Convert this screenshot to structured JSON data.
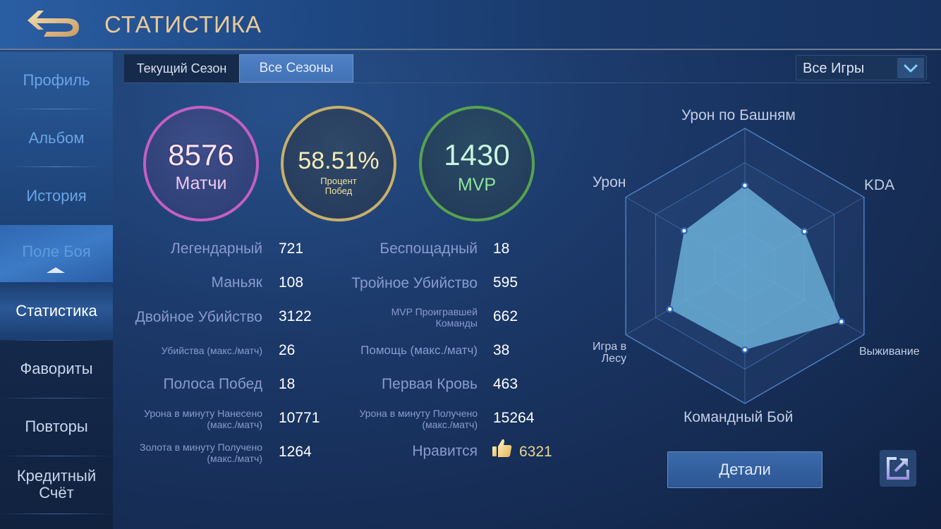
{
  "header": {
    "title": "СТАТИСТИКА",
    "back_icon": "back-arrow-icon"
  },
  "sidebar": {
    "items": [
      {
        "label": "Профиль",
        "state": "dim"
      },
      {
        "label": "Альбом",
        "state": "dim"
      },
      {
        "label": "История",
        "state": "dim"
      },
      {
        "label": "Поле Боя",
        "state": "parent-expanded"
      },
      {
        "label": "Статистика",
        "state": "active"
      },
      {
        "label": "Фавориты",
        "state": "normal"
      },
      {
        "label": "Повторы",
        "state": "normal"
      },
      {
        "label": "Кредитный Счёт",
        "state": "normal"
      }
    ]
  },
  "tabs": [
    {
      "label": "Текущий Сезон",
      "active": false
    },
    {
      "label": "Все Сезоны",
      "active": true
    }
  ],
  "filter": {
    "selected": "Все Игры",
    "icon": "chevron-down-icon"
  },
  "summary": {
    "matches": {
      "value": "8576",
      "label": "Матчи",
      "color": "#c45fc4"
    },
    "win_rate": {
      "value": "58.51%",
      "label_line1": "Процент",
      "label_line2": "Побед",
      "color": "#c7b06a"
    },
    "mvp": {
      "value": "1430",
      "label": "MVP",
      "color": "#57a24f"
    }
  },
  "stats": {
    "left": [
      {
        "label": "Легендарный",
        "value": "721"
      },
      {
        "label": "Маньяк",
        "value": "108"
      },
      {
        "label": "Двойное Убийство",
        "value": "3122"
      },
      {
        "label": "Убийства (макс./матч)",
        "value": "26"
      },
      {
        "label": "Полоса Побед",
        "value": "18"
      },
      {
        "label_line1": "Урона в минуту Нанесено",
        "label_line2": "(макс./матч)",
        "value": "10771"
      },
      {
        "label_line1": "Золота в минуту Получено",
        "label_line2": "(макс./матч)",
        "value": "1264"
      }
    ],
    "right": [
      {
        "label": "Беспощадный",
        "value": "18"
      },
      {
        "label": "Тройное Убийство",
        "value": "595"
      },
      {
        "label_line1": "MVP Проигравшей",
        "label_line2": "Команды",
        "value": "662"
      },
      {
        "label": "Помощь (макс./матч)",
        "value": "38"
      },
      {
        "label": "Первая Кровь",
        "value": "463"
      },
      {
        "label_line1": "Урона в минуту Получено",
        "label_line2": "(макс./матч)",
        "value": "15264"
      },
      {
        "label": "Нравится",
        "value": "6321",
        "icon": "thumbs-up-icon"
      }
    ]
  },
  "radar": {
    "axes": [
      {
        "label": "Урон по Башням",
        "value": 0.585
      },
      {
        "label": "KDA",
        "value": 0.5
      },
      {
        "label": "Выживание",
        "value": 0.81
      },
      {
        "label": "Командный Бой",
        "value": 0.61
      },
      {
        "label_line1": "Игра в",
        "label_line2": "Лесу",
        "value": 0.63
      },
      {
        "label": "Урон",
        "value": 0.51
      }
    ],
    "fill_color": "#6aaed6"
  },
  "chart_data": {
    "type": "radar",
    "categories": [
      "Урон по Башням",
      "KDA",
      "Выживание",
      "Командный Бой",
      "Игра в Лесу",
      "Урон"
    ],
    "values": [
      0.585,
      0.5,
      0.81,
      0.61,
      0.63,
      0.51
    ],
    "range": [
      0,
      1
    ],
    "rings": 4
  },
  "actions": {
    "details_label": "Детали",
    "share_icon": "external-share-icon"
  }
}
